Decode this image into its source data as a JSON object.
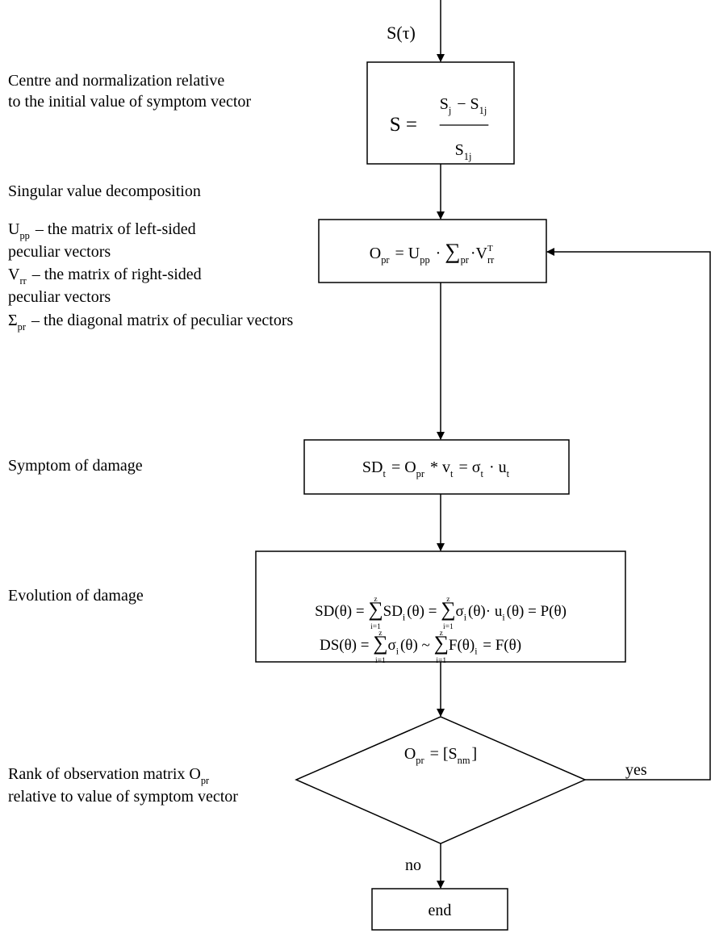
{
  "input": [
    {
      "text": "S(τ)"
    }
  ],
  "steps": [
    {
      "notes": [
        [
          {
            "text": "Centre and normalization relative"
          }
        ],
        [
          {
            "text": "to the initial value of symptom vector"
          }
        ]
      ],
      "lhs": [
        {
          "text": "S ="
        }
      ],
      "num": [
        {
          "text": "S",
          "sub": "j"
        },
        {
          "text": " − S",
          "sub": "1j"
        }
      ],
      "den": [
        {
          "text": "S",
          "sub": "1j"
        }
      ]
    },
    {
      "notes": [
        [
          {
            "text": "Singular value decomposition"
          }
        ]
      ],
      "legend": [
        [
          {
            "text": "U",
            "sub": "pp"
          },
          {
            "text": " – the matrix of left-sided"
          }
        ],
        [
          {
            "text": "peculiar vectors"
          }
        ],
        [
          {
            "text": "V",
            "sub": "rr"
          },
          {
            "text": " – the matrix of right-sided"
          }
        ],
        [
          {
            "text": "peculiar vectors"
          }
        ],
        [
          {
            "text": "Σ",
            "sub": "pr"
          },
          {
            "text": " – the diagonal matrix of peculiar vectors"
          }
        ]
      ],
      "lines": [
        [
          {
            "text": "O",
            "sub": "pr"
          },
          {
            "text": " = U",
            "sub": "pp"
          },
          {
            "text": " · "
          },
          {
            "text": "∑",
            "sub": "pr"
          },
          {
            "text": "·V",
            "sub": "rr",
            "sup": "T"
          }
        ]
      ]
    },
    {
      "notes": [
        [
          {
            "text": "Symptom of damage"
          }
        ]
      ],
      "lines": [
        [
          {
            "text": "SD",
            "sub": "t"
          },
          {
            "text": " = O",
            "sub": "pr"
          },
          {
            "text": " * v",
            "sub": "t"
          },
          {
            "text": " = σ",
            "sub": "t"
          },
          {
            "text": " · u",
            "sub": "t"
          }
        ]
      ]
    },
    {
      "notes": [
        [
          {
            "text": "Evolution of damage"
          }
        ]
      ],
      "lines": [
        [
          {
            "text": "SD(θ) = "
          },
          {
            "text": "∑",
            "over": "z",
            "under": "i=1"
          },
          {
            "text": "SD",
            "sub": "i"
          },
          {
            "text": "(θ) = "
          },
          {
            "text": "∑",
            "over": "z",
            "under": "i=1"
          },
          {
            "text": "σ",
            "sub": "i"
          },
          {
            "text": "(θ)· u",
            "sub": "i"
          },
          {
            "text": "(θ) = P(θ)"
          }
        ],
        [
          {
            "text": "DS(θ) = "
          },
          {
            "text": "∑",
            "over": "z",
            "under": "i=1"
          },
          {
            "text": "σ",
            "sub": "i"
          },
          {
            "text": "(θ) ~ "
          },
          {
            "text": "∑",
            "over": "z",
            "under": "i=1"
          },
          {
            "text": "F(θ)",
            "sub": "i"
          },
          {
            "text": " = F(θ)"
          }
        ]
      ]
    }
  ],
  "decision": {
    "notes": [
      [
        {
          "text": "Rank of observation matrix O",
          "sub": "pr"
        }
      ],
      [
        {
          "text": "relative to value of symptom vector"
        }
      ]
    ],
    "condition": [
      {
        "text": "O",
        "sub": "pr"
      },
      {
        "text": " = [S",
        "sub": "nm"
      },
      {
        "text": "]"
      }
    ],
    "yes": "yes",
    "no": "no"
  },
  "end": "end"
}
